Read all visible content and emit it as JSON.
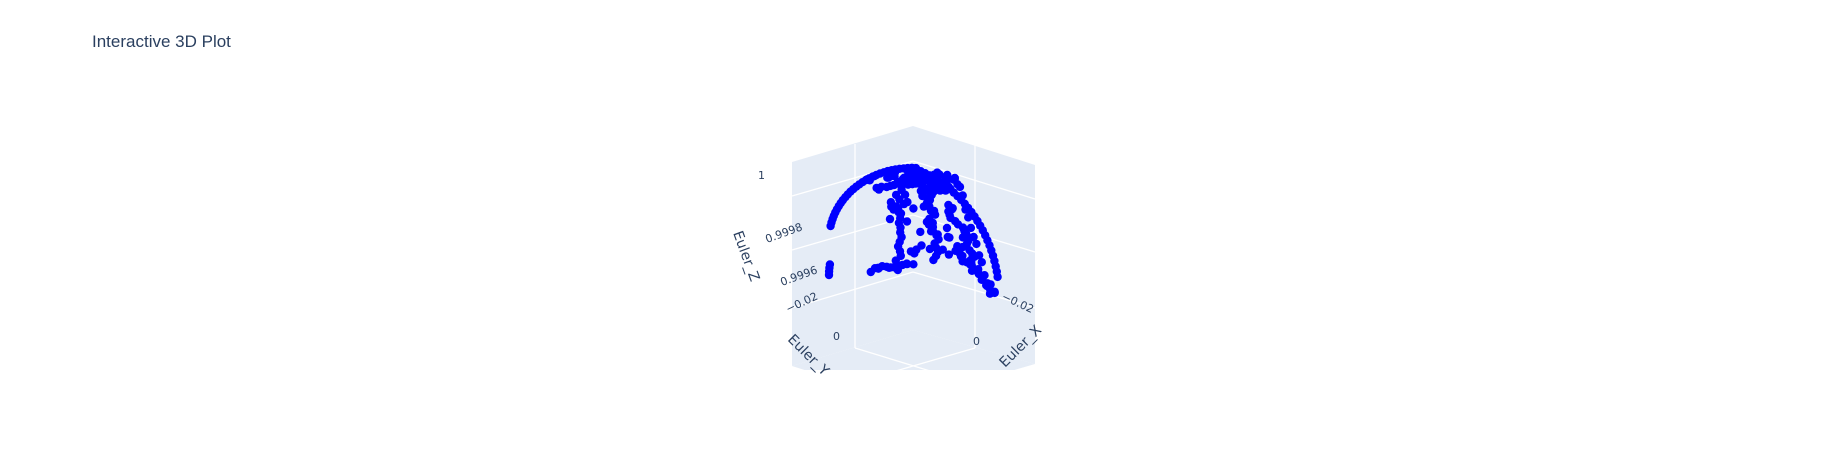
{
  "chart_data": {
    "type": "scatter",
    "dimensions": 3,
    "title": "Interactive 3D Plot",
    "xlabel": "Euler_X",
    "ylabel": "Euler_Y",
    "zlabel": "Euler_Z",
    "x_ticks": [
      "−0.02",
      "0"
    ],
    "y_ticks": [
      "−0.02",
      "0"
    ],
    "z_ticks": [
      "0.9996",
      "0.9998",
      "1"
    ],
    "marker_color": "#0000ff",
    "background_color": "#e5ecf6",
    "grid": true,
    "shape": "dome",
    "notes": "points approximate a dome/paraboloid shell near the Euler_Z maximum"
  }
}
